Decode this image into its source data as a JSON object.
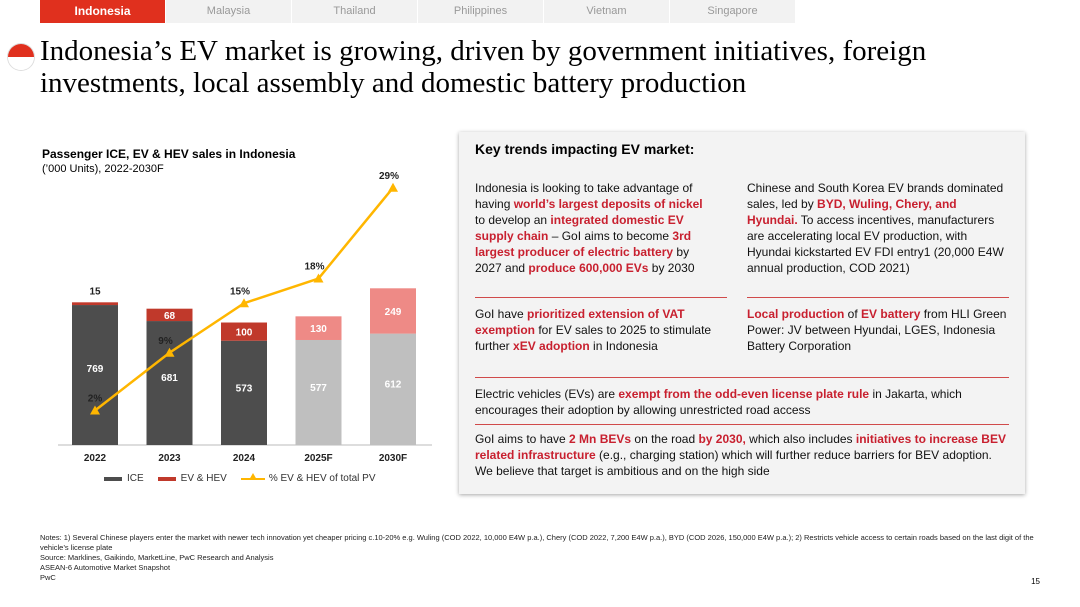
{
  "tabs": [
    {
      "label": "Indonesia",
      "active": true
    },
    {
      "label": "Malaysia",
      "active": false
    },
    {
      "label": "Thailand",
      "active": false
    },
    {
      "label": "Philippines",
      "active": false
    },
    {
      "label": "Vietnam",
      "active": false
    },
    {
      "label": "Singapore",
      "active": false
    }
  ],
  "title": "Indonesia’s EV market is growing, driven by government initiatives, foreign investments, local assembly and domestic battery production",
  "chart_data": {
    "type": "bar",
    "title": "Passenger ICE, EV & HEV sales in Indonesia",
    "subtitle": "(’000 Units), 2022-2030F",
    "categories": [
      "2022",
      "2023",
      "2024",
      "2025F",
      "2030F"
    ],
    "series": [
      {
        "name": "ICE",
        "values": [
          769,
          681,
          573,
          577,
          612
        ]
      },
      {
        "name": "EV & HEV",
        "values": [
          15,
          68,
          100,
          130,
          249
        ]
      }
    ],
    "line_series": {
      "name": "% EV & HEV of total PV",
      "values": [
        2,
        9,
        15,
        18,
        29
      ],
      "labels": [
        "2%",
        "9%",
        "15%",
        "18%",
        "29%"
      ]
    },
    "legend": [
      "ICE",
      "EV & HEV",
      "% EV & HEV of total PV"
    ],
    "colors": {
      "ice": "#4d4d4d",
      "ev": "#c0392b",
      "ice_forecast": "#bfbfbf",
      "ev_forecast": "#ee8a86",
      "line": "#ffb600"
    }
  },
  "panel": {
    "title": "Key trends impacting EV market:",
    "row1_left": [
      {
        "t": "Indonesia is looking to take advantage of having "
      },
      {
        "t": "world’s largest deposits of nickel",
        "h": true
      },
      {
        "t": " to develop an "
      },
      {
        "t": "integrated domestic EV supply chain",
        "h": true
      },
      {
        "t": " – GoI aims to become "
      },
      {
        "t": "3rd largest producer of electric battery",
        "h": true
      },
      {
        "t": " by 2027 and "
      },
      {
        "t": "produce 600,000 EVs",
        "h": true
      },
      {
        "t": " by 2030"
      }
    ],
    "row1_right": [
      {
        "t": "Chinese and South Korea EV brands dominated sales, led by "
      },
      {
        "t": "BYD, Wuling, Chery, and Hyundai.",
        "h": true
      },
      {
        "t": " To access incentives, manufacturers are accelerating local EV production, with Hyundai kickstarted EV FDI entry1 (20,000 E4W annual production, COD 2021)"
      }
    ],
    "row2_left": [
      {
        "t": "GoI have "
      },
      {
        "t": "prioritized extension of VAT exemption",
        "h": true
      },
      {
        "t": " for EV sales to 2025 to stimulate further "
      },
      {
        "t": "xEV adoption",
        "h": true
      },
      {
        "t": " in Indonesia"
      }
    ],
    "row2_right": [
      {
        "t": "Local production",
        "h": true
      },
      {
        "t": " of "
      },
      {
        "t": "EV battery",
        "h": true
      },
      {
        "t": " from HLI Green Power: JV between Hyundai, LGES, Indonesia Battery Corporation"
      }
    ],
    "row3": [
      {
        "t": "Electric vehicles (EVs) are "
      },
      {
        "t": "exempt from the odd-even license plate rule",
        "h": true
      },
      {
        "t": " in Jakarta, which encourages their adoption by allowing unrestricted road access"
      }
    ],
    "row4": [
      {
        "t": "GoI aims to have "
      },
      {
        "t": "2 Mn BEVs",
        "h": true
      },
      {
        "t": " on the road "
      },
      {
        "t": "by 2030,",
        "h": true
      },
      {
        "t": " which also includes "
      },
      {
        "t": "initiatives to increase BEV related infrastructure",
        "h": true
      },
      {
        "t": " (e.g., charging station) which will further reduce barriers for BEV adoption. We believe that target is ambitious and on the high side"
      }
    ]
  },
  "footer": {
    "notes": "Notes: 1) Several Chinese players enter the market with newer tech innovation yet cheaper pricing c.10-20% e.g. Wuling (COD 2022, 10,000 E4W p.a.), Chery (COD 2022, 7,200 E4W p.a.), BYD (COD 2026, 150,000 E4W p.a.); 2) Restricts vehicle access to certain roads based on the last digit of the vehicle’s license plate",
    "source": "Source: Marklines, Gaikindo, MarketLine, PwC Research and Analysis",
    "report": "ASEAN-6 Automotive Market Snapshot",
    "brand": "PwC",
    "page": "15"
  }
}
